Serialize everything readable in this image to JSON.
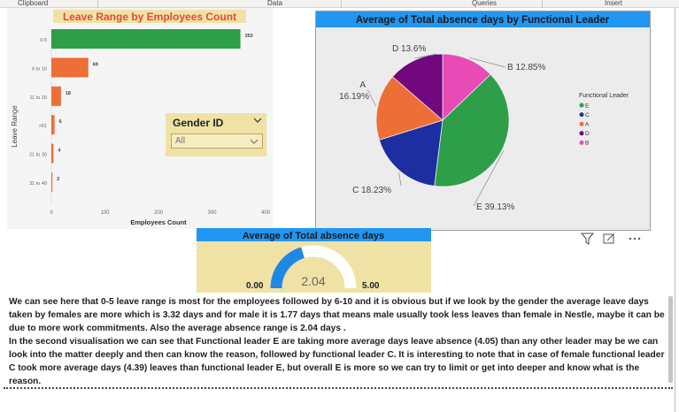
{
  "ribbon": {
    "items": [
      "Clipboard",
      "Data",
      "Queries",
      "Insert"
    ]
  },
  "bar_chart": {
    "title": "Leave Range by Employees Count",
    "ylabel": "Leave Range",
    "xlabel": "Employees Count",
    "colors": {
      "first": "#2e9e49",
      "rest": "#ee6e37",
      "title_bg": "#f0e2a4",
      "title_text": "#e8473a"
    }
  },
  "gender_slicer": {
    "title": "Gender ID",
    "selected": "All"
  },
  "pie_chart": {
    "title": "Average of Total absence days by Functional Leader",
    "legend_title": "Functional Leader",
    "title_bg": "#2196f3"
  },
  "gauge": {
    "title": "Average of Total absence days",
    "min_label": "0.00",
    "max_label": "5.00",
    "value_label": "2.04",
    "colors": {
      "fill": "#1e88e5",
      "track": "#ffffff"
    }
  },
  "narrative": {
    "paragraph1": "We can see here that 0-5 leave range is most for the employees followed by 6-10 and it is obvious but if we look by the gender the average leave days taken by females are more which is 3.32 days and for male it is 1.77 days that means male usually took less leaves than female in Nestle, maybe it can be due to more work commitments. Also the average absence range is 2.04 days .",
    "paragraph2": "In the second visualisation we can see that Functional leader E are taking more average days leave absence (4.05) than any other leader may be we can look into the matter deeply and then can know the reason, followed by functional leader C. It is interesting to note that in case of female functional leader C took more average days (4.39)  leaves than functional leader E, but overall E is more so we can try to limit or get into deeper and know what is the reason."
  },
  "chart_data": [
    {
      "type": "bar",
      "title": "Leave Range by Employees Count",
      "orientation": "horizontal",
      "categories": [
        "0-5",
        "6 to 10",
        "11 to 20",
        ">51",
        "21 to 30",
        "31 to 40"
      ],
      "values": [
        353,
        69,
        18,
        6,
        4,
        2
      ],
      "data_labels": [
        "353",
        "69",
        "18",
        "6",
        "4",
        "2"
      ],
      "xlabel": "Employees Count",
      "ylabel": "Leave Range",
      "xlim": [
        0,
        400
      ],
      "xticks": [
        "0",
        "100",
        "200",
        "300",
        "400"
      ]
    },
    {
      "type": "pie",
      "title": "Average of Total absence days by Functional Leader",
      "series": [
        {
          "name": "B",
          "value": 12.85,
          "label": "B 12.85%",
          "color": "#e84bb5"
        },
        {
          "name": "E",
          "value": 39.13,
          "label": "E 39.13%",
          "color": "#2e9e49"
        },
        {
          "name": "C",
          "value": 18.23,
          "label": "C 18.23%",
          "color": "#1c2ea0"
        },
        {
          "name": "A",
          "value": 16.19,
          "label": "16.19%",
          "prefix": "A",
          "color": "#ee6e37"
        },
        {
          "name": "D",
          "value": 13.6,
          "label": "D 13.6%",
          "color": "#72087e"
        }
      ],
      "legend": {
        "title": "Functional Leader",
        "entries": [
          "E",
          "C",
          "A",
          "D",
          "B"
        ],
        "placement": "right"
      }
    },
    {
      "type": "gauge",
      "title": "Average of Total absence days",
      "value": 2.04,
      "min": 0,
      "max": 5
    }
  ]
}
